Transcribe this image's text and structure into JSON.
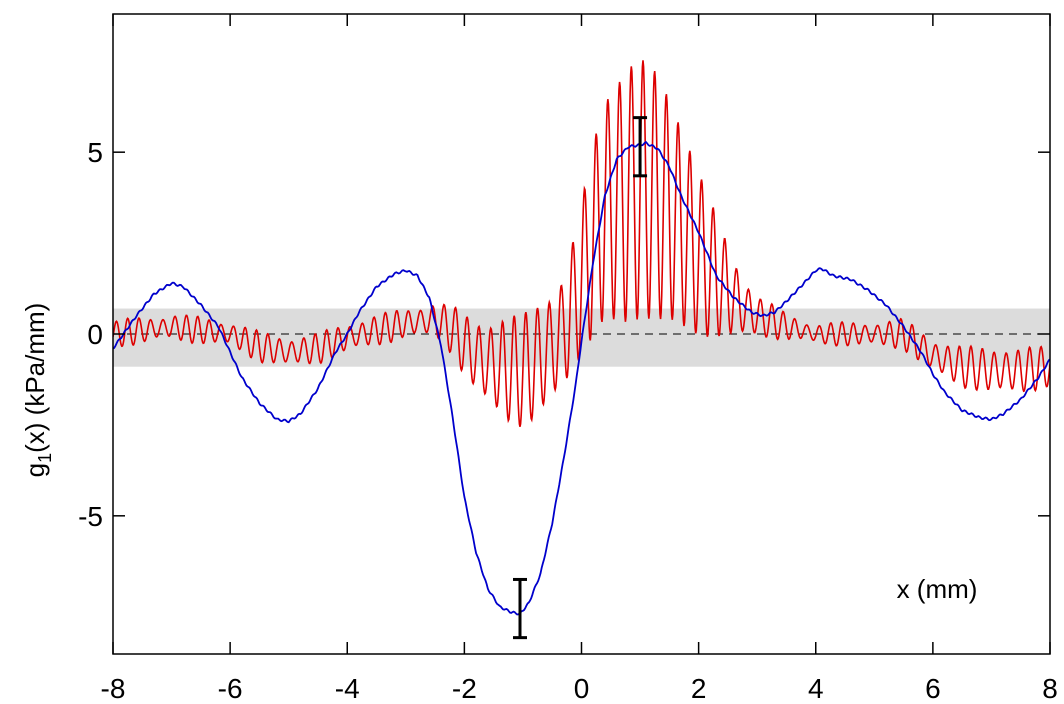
{
  "chart_data": {
    "type": "line",
    "title": "",
    "xlabel": "x (mm)",
    "ylabel_main": "g",
    "ylabel_sub": "1",
    "ylabel_rest": "(x) (kPa/mm)",
    "xlim": [
      -8,
      8
    ],
    "ylim": [
      -8.8,
      8.8
    ],
    "x_ticks": [
      -8,
      -6,
      -4,
      -2,
      0,
      2,
      4,
      6,
      8
    ],
    "x_tick_labels": [
      "-8",
      "-6",
      "-4",
      "-2",
      "0",
      "2",
      "4",
      "6",
      "8"
    ],
    "y_ticks": [
      -5,
      0,
      5
    ],
    "y_tick_labels": [
      "-5",
      "0",
      "5"
    ],
    "grid": false,
    "band": {
      "y_low": -0.9,
      "y_high": 0.7,
      "color": "#dcdcdc"
    },
    "zero_line": {
      "y": 0,
      "style": "dashed",
      "color": "#000000"
    },
    "series": [
      {
        "color": "#0000cc",
        "x": [
          -8.0,
          -7.6,
          -7.3,
          -7.0,
          -6.8,
          -6.5,
          -6.2,
          -6.0,
          -5.8,
          -5.5,
          -5.2,
          -5.0,
          -4.8,
          -4.5,
          -4.2,
          -4.0,
          -3.8,
          -3.5,
          -3.2,
          -3.0,
          -2.8,
          -2.6,
          -2.4,
          -2.2,
          -2.0,
          -1.8,
          -1.6,
          -1.4,
          -1.2,
          -1.05,
          -0.9,
          -0.7,
          -0.5,
          -0.3,
          -0.1,
          0.0,
          0.2,
          0.4,
          0.6,
          0.8,
          1.0,
          1.1,
          1.3,
          1.5,
          1.7,
          2.0,
          2.3,
          2.6,
          2.9,
          3.1,
          3.3,
          3.5,
          3.8,
          4.0,
          4.1,
          4.3,
          4.6,
          4.9,
          5.2,
          5.5,
          5.8,
          6.0,
          6.2,
          6.5,
          6.8,
          7.0,
          7.2,
          7.5,
          7.8,
          8.0
        ],
        "y": [
          -0.4,
          0.5,
          1.1,
          1.4,
          1.3,
          0.8,
          0.2,
          -0.5,
          -1.2,
          -1.9,
          -2.35,
          -2.4,
          -2.2,
          -1.5,
          -0.5,
          0.0,
          0.6,
          1.3,
          1.65,
          1.75,
          1.6,
          1.0,
          -0.3,
          -2.3,
          -4.5,
          -6.0,
          -7.0,
          -7.5,
          -7.65,
          -7.7,
          -7.4,
          -6.6,
          -5.2,
          -3.4,
          -1.4,
          -0.2,
          2.0,
          3.8,
          4.8,
          5.15,
          5.2,
          5.25,
          5.1,
          4.6,
          3.8,
          2.8,
          1.6,
          1.0,
          0.6,
          0.5,
          0.6,
          0.9,
          1.4,
          1.75,
          1.8,
          1.6,
          1.5,
          1.2,
          0.8,
          0.2,
          -0.5,
          -1.1,
          -1.6,
          -2.1,
          -2.3,
          -2.35,
          -2.2,
          -1.8,
          -1.2,
          -0.7
        ]
      },
      {
        "color": "#dd0000",
        "x": [
          -8.0,
          -7.0,
          -6.0,
          -5.5,
          -5.0,
          -4.5,
          -4.0,
          -3.5,
          -3.0,
          -2.5,
          -2.2,
          -2.0,
          -1.8,
          -1.6,
          -1.4,
          -1.2,
          -1.0,
          -0.8,
          -0.6,
          -0.4,
          -0.2,
          0.0,
          0.2,
          0.4,
          0.6,
          0.8,
          1.0,
          1.2,
          1.4,
          1.6,
          1.8,
          2.0,
          2.2,
          2.4,
          2.6,
          2.8,
          3.0,
          3.5,
          4.0,
          4.5,
          5.0,
          5.5,
          6.0,
          6.5,
          7.0,
          7.5,
          8.0
        ],
        "y": [
          0.0,
          0.2,
          0.0,
          -0.35,
          -0.5,
          -0.4,
          -0.1,
          0.1,
          0.3,
          0.4,
          0.1,
          -0.3,
          -0.6,
          -0.8,
          -0.9,
          -1.0,
          -1.0,
          -0.8,
          -0.5,
          -0.2,
          0.5,
          1.5,
          2.6,
          3.4,
          3.6,
          3.8,
          4.0,
          3.9,
          3.6,
          3.2,
          2.7,
          2.2,
          1.8,
          1.4,
          1.0,
          0.7,
          0.5,
          0.2,
          0.0,
          0.0,
          0.0,
          0.0,
          -0.6,
          -0.9,
          -1.0,
          -1.0,
          -0.9
        ],
        "oscillation_amplitude": [
          0.3,
          0.3,
          0.3,
          0.35,
          0.35,
          0.35,
          0.35,
          0.35,
          0.35,
          0.4,
          0.6,
          0.8,
          0.9,
          1.0,
          1.2,
          1.4,
          1.5,
          1.5,
          1.4,
          1.3,
          1.6,
          2.0,
          2.6,
          3.0,
          3.3,
          3.5,
          3.5,
          3.4,
          3.2,
          2.9,
          2.6,
          2.2,
          1.8,
          1.4,
          1.0,
          0.7,
          0.5,
          0.3,
          0.25,
          0.25,
          0.3,
          0.35,
          0.4,
          0.5,
          0.55,
          0.55,
          0.5
        ],
        "oscillation_period": 0.2
      }
    ],
    "error_bars": [
      {
        "x": 1.0,
        "y_low": 4.35,
        "y_high": 5.95,
        "color": "#000000"
      },
      {
        "x": -1.05,
        "y_low": -8.35,
        "y_high": -6.75,
        "color": "#000000"
      }
    ]
  }
}
